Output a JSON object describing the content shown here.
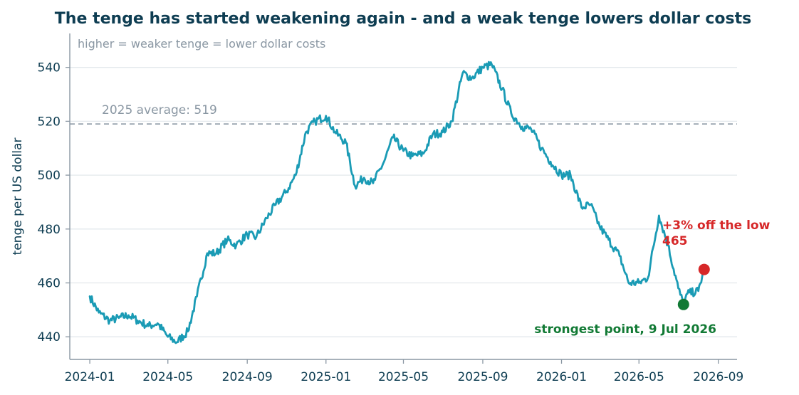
{
  "chart_data": {
    "type": "line",
    "title": "The tenge has started weakening again - and a weak tenge lowers dollar costs",
    "subtitle": "higher = weaker tenge = lower dollar costs",
    "xlabel": "",
    "ylabel": "tenge per US dollar",
    "x_ticks": [
      "2024-01",
      "2024-05",
      "2024-09",
      "2025-01",
      "2025-05",
      "2025-09",
      "2026-01",
      "2026-05",
      "2026-09"
    ],
    "y_ticks": [
      440,
      460,
      480,
      500,
      520,
      540
    ],
    "xlim": [
      "2023-12-01",
      "2026-09-30"
    ],
    "ylim": [
      431.6,
      552.6
    ],
    "grid": "horizontal",
    "legend": "none",
    "reference_line": {
      "value": 519,
      "label": "2025 average: 519",
      "style": "dashed"
    },
    "series": [
      {
        "color": "#1a9bb5",
        "x": [
          "2024-01-01",
          "2024-01-15",
          "2024-02-01",
          "2024-02-15",
          "2024-03-01",
          "2024-03-15",
          "2024-04-01",
          "2024-04-15",
          "2024-05-01",
          "2024-05-15",
          "2024-06-01",
          "2024-06-15",
          "2024-07-01",
          "2024-07-15",
          "2024-08-01",
          "2024-08-15",
          "2024-09-01",
          "2024-09-15",
          "2024-10-01",
          "2024-10-15",
          "2024-11-01",
          "2024-11-15",
          "2024-12-01",
          "2024-12-15",
          "2025-01-01",
          "2025-01-15",
          "2025-02-01",
          "2025-02-15",
          "2025-03-01",
          "2025-03-15",
          "2025-04-01",
          "2025-04-15",
          "2025-05-01",
          "2025-05-15",
          "2025-06-01",
          "2025-06-15",
          "2025-07-01",
          "2025-07-15",
          "2025-08-01",
          "2025-08-15",
          "2025-09-01",
          "2025-09-15",
          "2025-10-01",
          "2025-10-15",
          "2025-11-01",
          "2025-11-15",
          "2025-12-01",
          "2025-12-15",
          "2026-01-01",
          "2026-01-15",
          "2026-02-01",
          "2026-02-15",
          "2026-03-01",
          "2026-03-15",
          "2026-04-01",
          "2026-04-15",
          "2026-05-01",
          "2026-05-15",
          "2026-06-01",
          "2026-06-15",
          "2026-07-01",
          "2026-07-09",
          "2026-07-15",
          "2026-08-01",
          "2026-08-10"
        ],
        "values": [
          455,
          449,
          446,
          447,
          448,
          446,
          444,
          445,
          440,
          438,
          442,
          455,
          471,
          471,
          476,
          474,
          478,
          477,
          484,
          489,
          494,
          500,
          516,
          520,
          522,
          516,
          512,
          496,
          499,
          497,
          505,
          514,
          509,
          507,
          508,
          515,
          516,
          520,
          538,
          536,
          540,
          541,
          532,
          523,
          518,
          517,
          510,
          505,
          500,
          500,
          488,
          489,
          481,
          476,
          470,
          460,
          460,
          462,
          485,
          474,
          458,
          452,
          456,
          457,
          465
        ]
      }
    ],
    "annotations": [
      {
        "label": "strongest point, 9 Jul 2026",
        "x": "2026-07-09",
        "y": 452,
        "color": "#127a35"
      },
      {
        "label": "+3% off the low",
        "value_label": "465",
        "x": "2026-08-10",
        "y": 465,
        "color": "#d62728"
      }
    ]
  }
}
